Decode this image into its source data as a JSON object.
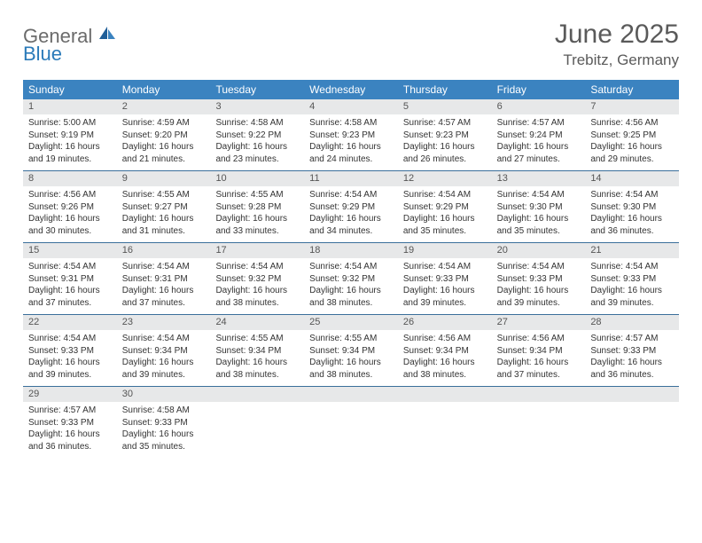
{
  "brand": {
    "word1": "General",
    "word2": "Blue"
  },
  "title": {
    "month": "June 2025",
    "location": "Trebitz, Germany"
  },
  "colors": {
    "header_bg": "#3b83c0",
    "header_text": "#ffffff",
    "daybar_bg": "#e7e8e9",
    "row_border": "#3b6f9b",
    "title_text": "#5a5a5a",
    "logo_gray": "#6b6b6b",
    "logo_blue": "#2a7ab9"
  },
  "day_names": [
    "Sunday",
    "Monday",
    "Tuesday",
    "Wednesday",
    "Thursday",
    "Friday",
    "Saturday"
  ],
  "weeks": [
    [
      {
        "n": "1",
        "sunrise": "Sunrise: 5:00 AM",
        "sunset": "Sunset: 9:19 PM",
        "daylight": "Daylight: 16 hours and 19 minutes."
      },
      {
        "n": "2",
        "sunrise": "Sunrise: 4:59 AM",
        "sunset": "Sunset: 9:20 PM",
        "daylight": "Daylight: 16 hours and 21 minutes."
      },
      {
        "n": "3",
        "sunrise": "Sunrise: 4:58 AM",
        "sunset": "Sunset: 9:22 PM",
        "daylight": "Daylight: 16 hours and 23 minutes."
      },
      {
        "n": "4",
        "sunrise": "Sunrise: 4:58 AM",
        "sunset": "Sunset: 9:23 PM",
        "daylight": "Daylight: 16 hours and 24 minutes."
      },
      {
        "n": "5",
        "sunrise": "Sunrise: 4:57 AM",
        "sunset": "Sunset: 9:23 PM",
        "daylight": "Daylight: 16 hours and 26 minutes."
      },
      {
        "n": "6",
        "sunrise": "Sunrise: 4:57 AM",
        "sunset": "Sunset: 9:24 PM",
        "daylight": "Daylight: 16 hours and 27 minutes."
      },
      {
        "n": "7",
        "sunrise": "Sunrise: 4:56 AM",
        "sunset": "Sunset: 9:25 PM",
        "daylight": "Daylight: 16 hours and 29 minutes."
      }
    ],
    [
      {
        "n": "8",
        "sunrise": "Sunrise: 4:56 AM",
        "sunset": "Sunset: 9:26 PM",
        "daylight": "Daylight: 16 hours and 30 minutes."
      },
      {
        "n": "9",
        "sunrise": "Sunrise: 4:55 AM",
        "sunset": "Sunset: 9:27 PM",
        "daylight": "Daylight: 16 hours and 31 minutes."
      },
      {
        "n": "10",
        "sunrise": "Sunrise: 4:55 AM",
        "sunset": "Sunset: 9:28 PM",
        "daylight": "Daylight: 16 hours and 33 minutes."
      },
      {
        "n": "11",
        "sunrise": "Sunrise: 4:54 AM",
        "sunset": "Sunset: 9:29 PM",
        "daylight": "Daylight: 16 hours and 34 minutes."
      },
      {
        "n": "12",
        "sunrise": "Sunrise: 4:54 AM",
        "sunset": "Sunset: 9:29 PM",
        "daylight": "Daylight: 16 hours and 35 minutes."
      },
      {
        "n": "13",
        "sunrise": "Sunrise: 4:54 AM",
        "sunset": "Sunset: 9:30 PM",
        "daylight": "Daylight: 16 hours and 35 minutes."
      },
      {
        "n": "14",
        "sunrise": "Sunrise: 4:54 AM",
        "sunset": "Sunset: 9:30 PM",
        "daylight": "Daylight: 16 hours and 36 minutes."
      }
    ],
    [
      {
        "n": "15",
        "sunrise": "Sunrise: 4:54 AM",
        "sunset": "Sunset: 9:31 PM",
        "daylight": "Daylight: 16 hours and 37 minutes."
      },
      {
        "n": "16",
        "sunrise": "Sunrise: 4:54 AM",
        "sunset": "Sunset: 9:31 PM",
        "daylight": "Daylight: 16 hours and 37 minutes."
      },
      {
        "n": "17",
        "sunrise": "Sunrise: 4:54 AM",
        "sunset": "Sunset: 9:32 PM",
        "daylight": "Daylight: 16 hours and 38 minutes."
      },
      {
        "n": "18",
        "sunrise": "Sunrise: 4:54 AM",
        "sunset": "Sunset: 9:32 PM",
        "daylight": "Daylight: 16 hours and 38 minutes."
      },
      {
        "n": "19",
        "sunrise": "Sunrise: 4:54 AM",
        "sunset": "Sunset: 9:33 PM",
        "daylight": "Daylight: 16 hours and 39 minutes."
      },
      {
        "n": "20",
        "sunrise": "Sunrise: 4:54 AM",
        "sunset": "Sunset: 9:33 PM",
        "daylight": "Daylight: 16 hours and 39 minutes."
      },
      {
        "n": "21",
        "sunrise": "Sunrise: 4:54 AM",
        "sunset": "Sunset: 9:33 PM",
        "daylight": "Daylight: 16 hours and 39 minutes."
      }
    ],
    [
      {
        "n": "22",
        "sunrise": "Sunrise: 4:54 AM",
        "sunset": "Sunset: 9:33 PM",
        "daylight": "Daylight: 16 hours and 39 minutes."
      },
      {
        "n": "23",
        "sunrise": "Sunrise: 4:54 AM",
        "sunset": "Sunset: 9:34 PM",
        "daylight": "Daylight: 16 hours and 39 minutes."
      },
      {
        "n": "24",
        "sunrise": "Sunrise: 4:55 AM",
        "sunset": "Sunset: 9:34 PM",
        "daylight": "Daylight: 16 hours and 38 minutes."
      },
      {
        "n": "25",
        "sunrise": "Sunrise: 4:55 AM",
        "sunset": "Sunset: 9:34 PM",
        "daylight": "Daylight: 16 hours and 38 minutes."
      },
      {
        "n": "26",
        "sunrise": "Sunrise: 4:56 AM",
        "sunset": "Sunset: 9:34 PM",
        "daylight": "Daylight: 16 hours and 38 minutes."
      },
      {
        "n": "27",
        "sunrise": "Sunrise: 4:56 AM",
        "sunset": "Sunset: 9:34 PM",
        "daylight": "Daylight: 16 hours and 37 minutes."
      },
      {
        "n": "28",
        "sunrise": "Sunrise: 4:57 AM",
        "sunset": "Sunset: 9:33 PM",
        "daylight": "Daylight: 16 hours and 36 minutes."
      }
    ],
    [
      {
        "n": "29",
        "sunrise": "Sunrise: 4:57 AM",
        "sunset": "Sunset: 9:33 PM",
        "daylight": "Daylight: 16 hours and 36 minutes."
      },
      {
        "n": "30",
        "sunrise": "Sunrise: 4:58 AM",
        "sunset": "Sunset: 9:33 PM",
        "daylight": "Daylight: 16 hours and 35 minutes."
      },
      {
        "empty": true
      },
      {
        "empty": true
      },
      {
        "empty": true
      },
      {
        "empty": true
      },
      {
        "empty": true
      }
    ]
  ]
}
